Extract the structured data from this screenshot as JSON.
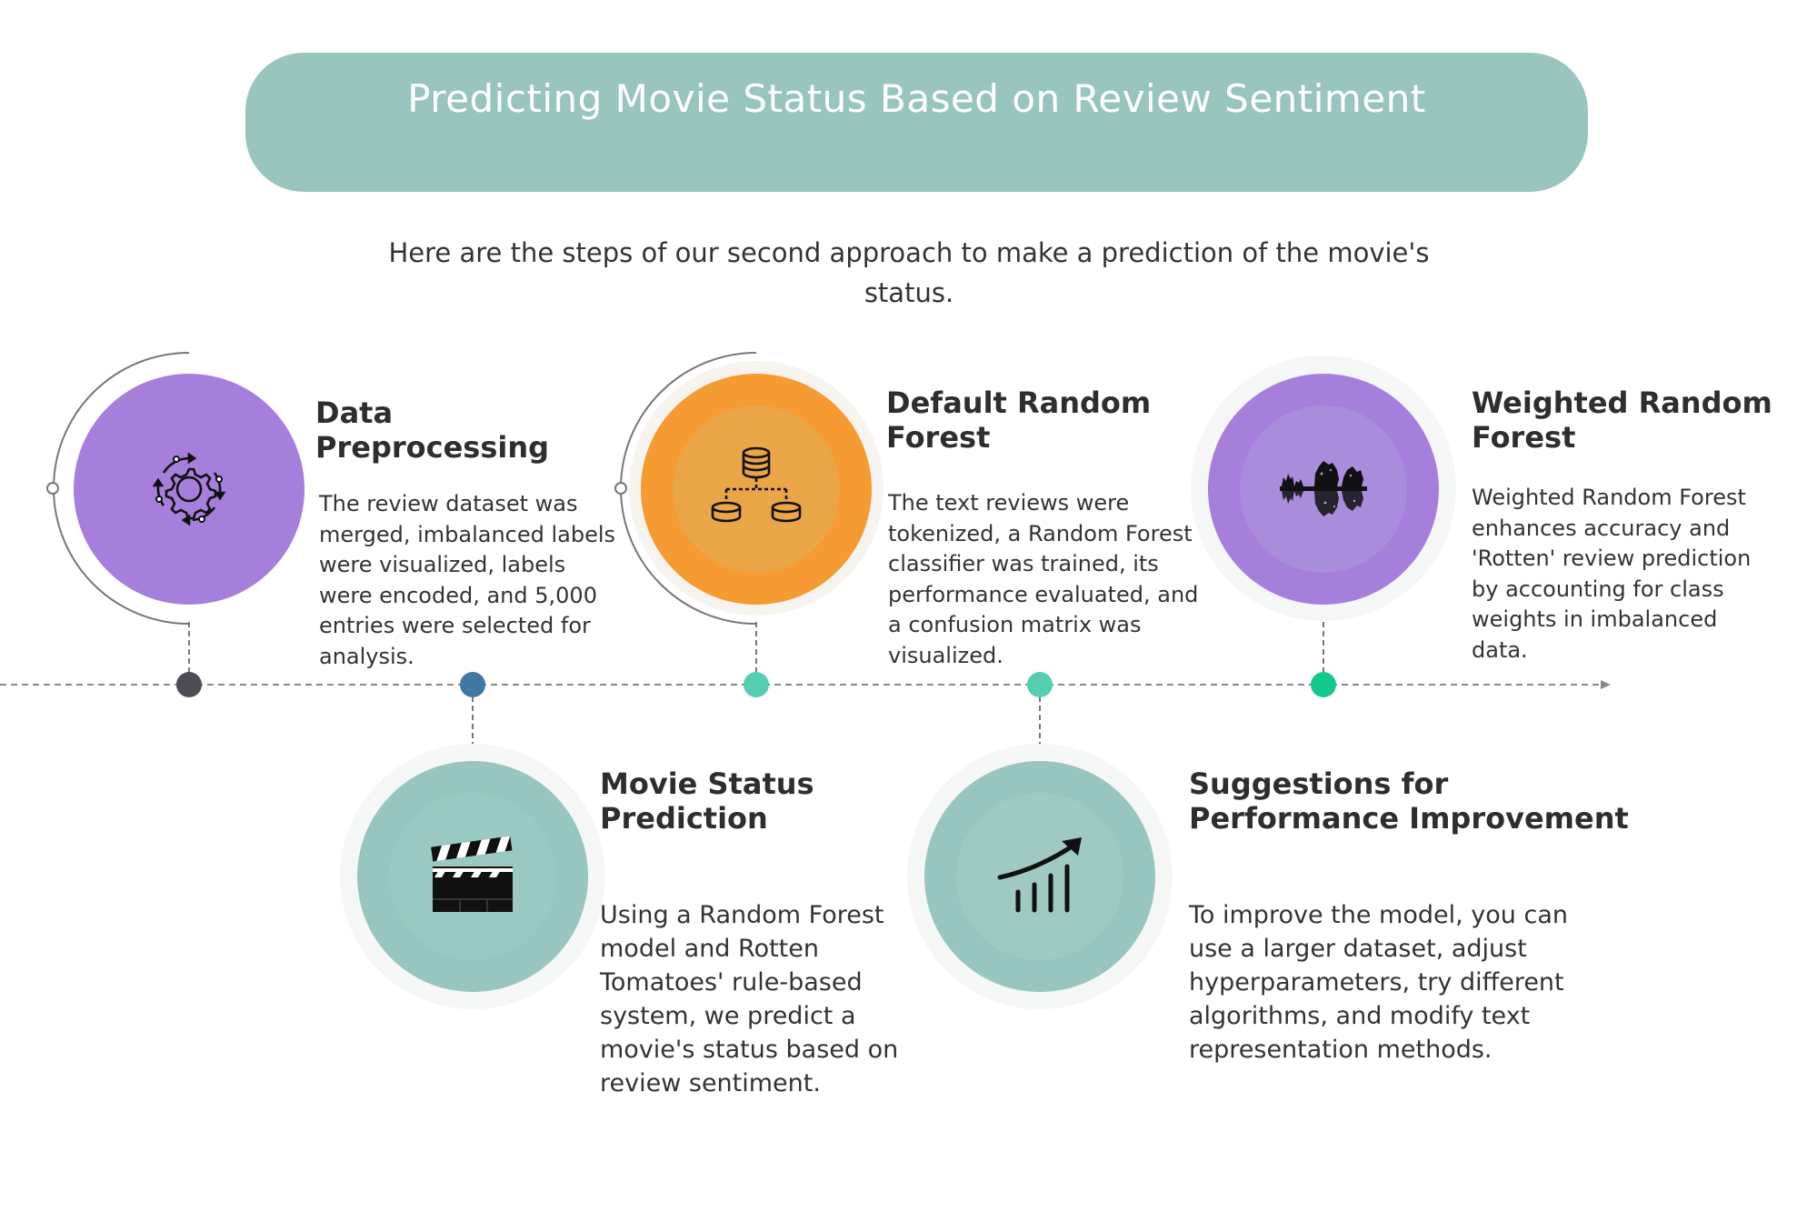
{
  "header": {
    "title": "Predicting Movie Status Based on Review Sentiment",
    "subtitle": "Here are the steps of our second approach to make a prediction of the movie's status."
  },
  "colors": {
    "banner": "#99c5bf",
    "purple": "#a67fdc",
    "orange": "#f69b32",
    "teal": "#97c5bf",
    "dot_dark": "#4c4c54",
    "dot_blue": "#3f78a0",
    "dot_teal": "#55cdb3",
    "dot_green": "#11c98b"
  },
  "steps": [
    {
      "title": "Data\nPreprocessing",
      "body": "The review dataset was merged, imbalanced labels were visualized, labels were encoded, and 5,000 entries were selected for analysis.",
      "icon": "gear-cycle-icon"
    },
    {
      "title": "Movie Status\nPrediction",
      "body": "Using a Random Forest model and Rotten Tomatoes' rule-based system, we predict a movie's status based on review sentiment.",
      "icon": "clapperboard-icon"
    },
    {
      "title": "Default Random\nForest",
      "body": "The text reviews were tokenized, a Random Forest classifier was trained, its performance evaluated, and a confusion matrix was visualized.",
      "icon": "database-hierarchy-icon"
    },
    {
      "title": "Suggestions for\nPerformance Improvement",
      "body": "To improve the model,  you can use a larger dataset, adjust hyperparameters, try different algorithms, and modify text representation methods.",
      "icon": "growth-chart-icon"
    },
    {
      "title": "Weighted Random\nForest",
      "body": "Weighted Random Forest enhances accuracy and 'Rotten' review prediction by accounting for class weights in imbalanced data.",
      "icon": "forest-reflection-icon"
    }
  ]
}
